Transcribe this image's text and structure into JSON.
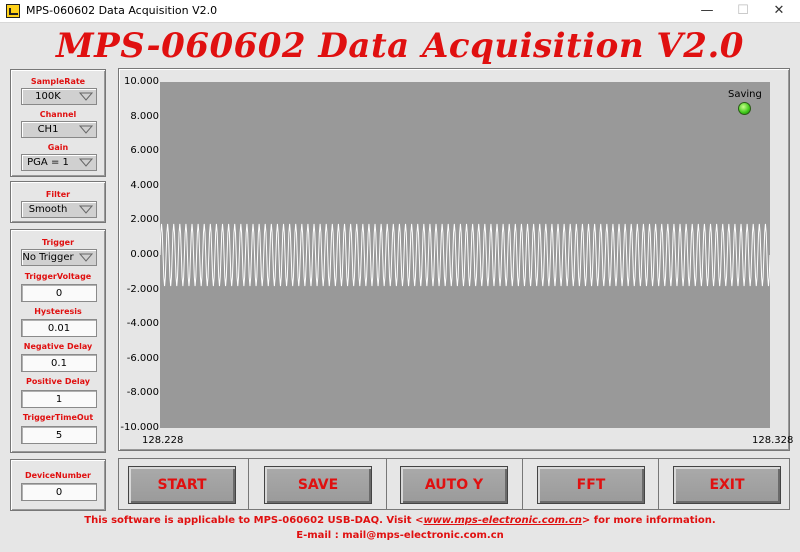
{
  "window": {
    "title": "MPS-060602 Data Acquisition V2.0",
    "minimize": "—",
    "maximize": "☐",
    "close": "✕"
  },
  "app_title": "MPS-060602 Data Acquisition V2.0",
  "settings": {
    "sample_rate": {
      "label": "SampleRate",
      "value": "100K"
    },
    "channel": {
      "label": "Channel",
      "value": "CH1"
    },
    "gain": {
      "label": "Gain",
      "value": "PGA = 1"
    }
  },
  "filter": {
    "label": "Filter",
    "value": "Smooth"
  },
  "trigger": {
    "label": "Trigger",
    "value": "No Trigger",
    "trigger_voltage": {
      "label": "TriggerVoltage",
      "value": "0"
    },
    "hysteresis": {
      "label": "Hysteresis",
      "value": "0.01"
    },
    "negative_delay": {
      "label": "Negative Delay",
      "value": "0.1"
    },
    "positive_delay": {
      "label": "Positive Delay",
      "value": "1"
    },
    "timeout": {
      "label": "TriggerTimeOut",
      "value": "5"
    }
  },
  "device": {
    "label": "DeviceNumber",
    "value": "0"
  },
  "chart_data": {
    "type": "line",
    "y_ticks": [
      "10.000",
      "8.000",
      "6.000",
      "4.000",
      "2.000",
      "0.000",
      "-2.000",
      "-4.000",
      "-6.000",
      "-8.000",
      "-10.000"
    ],
    "x_ticks": [
      "128.228",
      "128.328"
    ],
    "xlim": [
      128.228,
      128.328
    ],
    "ylim": [
      -10,
      10
    ],
    "series": [
      {
        "waveform": "sine",
        "amplitude": 1.8,
        "cycles": 100,
        "color": "#ffffff"
      }
    ],
    "background": "#999999",
    "grid": false
  },
  "indicator": {
    "label": "Saving",
    "state": "on",
    "color": "#3ec81a"
  },
  "buttons": {
    "start": "START",
    "save": "SAVE",
    "auto_y": "AUTO Y",
    "fft": "FFT",
    "exit": "EXIT"
  },
  "footer": {
    "pre": "This software is applicable to MPS-060602 USB-DAQ. Visit <",
    "link": "www.mps-electronic.com.cn",
    "post": "> for more information.",
    "email": "E-mail : mail@mps-electronic.com.cn"
  },
  "colors": {
    "accent": "#e01010",
    "plot_bg": "#999999",
    "signal": "#ffffff"
  }
}
